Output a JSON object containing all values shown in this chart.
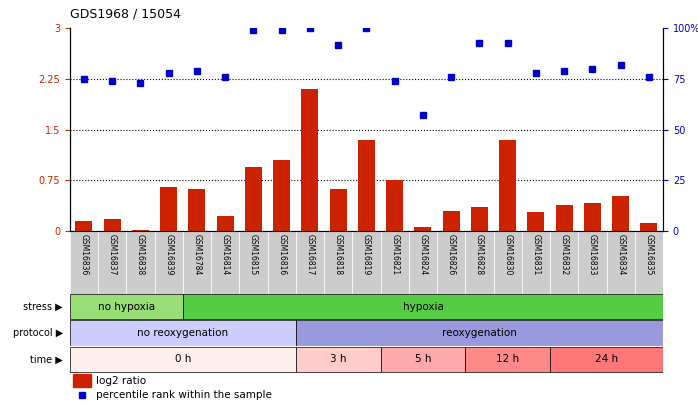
{
  "title": "GDS1968 / 15054",
  "samples": [
    "GSM16836",
    "GSM16837",
    "GSM16838",
    "GSM16839",
    "GSM16784",
    "GSM16814",
    "GSM16815",
    "GSM16816",
    "GSM16817",
    "GSM16818",
    "GSM16819",
    "GSM16821",
    "GSM16824",
    "GSM16826",
    "GSM16828",
    "GSM16830",
    "GSM16831",
    "GSM16832",
    "GSM16833",
    "GSM16834",
    "GSM16835"
  ],
  "log2_ratio": [
    0.15,
    0.18,
    0.02,
    0.65,
    0.62,
    0.22,
    0.95,
    1.05,
    2.1,
    0.62,
    1.35,
    0.75,
    0.05,
    0.3,
    0.35,
    1.35,
    0.28,
    0.38,
    0.42,
    0.52,
    0.12
  ],
  "percentile_pct": [
    75,
    74,
    73,
    78,
    79,
    76,
    99,
    99,
    100,
    92,
    100,
    74,
    57,
    76,
    93,
    93,
    78,
    79,
    80,
    82,
    76
  ],
  "bar_color": "#cc2200",
  "dot_color": "#0000cc",
  "ylim_left": [
    0,
    3.0
  ],
  "ylim_right": [
    0,
    100
  ],
  "yticks_left": [
    0,
    0.75,
    1.5,
    2.25,
    3.0
  ],
  "ytick_labels_left": [
    "0",
    "0.75",
    "1.5",
    "2.25",
    "3"
  ],
  "yticks_right": [
    0,
    25,
    50,
    75,
    100
  ],
  "ytick_labels_right": [
    "0",
    "25",
    "50",
    "75",
    "100%"
  ],
  "hlines": [
    0.75,
    1.5,
    2.25
  ],
  "stress_groups": [
    {
      "label": "no hypoxia",
      "start": 0,
      "end": 4,
      "color": "#99dd77"
    },
    {
      "label": "hypoxia",
      "start": 4,
      "end": 21,
      "color": "#55cc44"
    }
  ],
  "protocol_groups": [
    {
      "label": "no reoxygenation",
      "start": 0,
      "end": 8,
      "color": "#ccccff"
    },
    {
      "label": "reoxygenation",
      "start": 8,
      "end": 21,
      "color": "#9999dd"
    }
  ],
  "time_groups": [
    {
      "label": "0 h",
      "start": 0,
      "end": 8,
      "color": "#ffeeee"
    },
    {
      "label": "3 h",
      "start": 8,
      "end": 11,
      "color": "#ffcccc"
    },
    {
      "label": "5 h",
      "start": 11,
      "end": 14,
      "color": "#ffaaaa"
    },
    {
      "label": "12 h",
      "start": 14,
      "end": 17,
      "color": "#ff8888"
    },
    {
      "label": "24 h",
      "start": 17,
      "end": 21,
      "color": "#ff7777"
    }
  ],
  "sample_bg_color": "#cccccc",
  "legend_bar_label": "log2 ratio",
  "legend_dot_label": "percentile rank within the sample"
}
